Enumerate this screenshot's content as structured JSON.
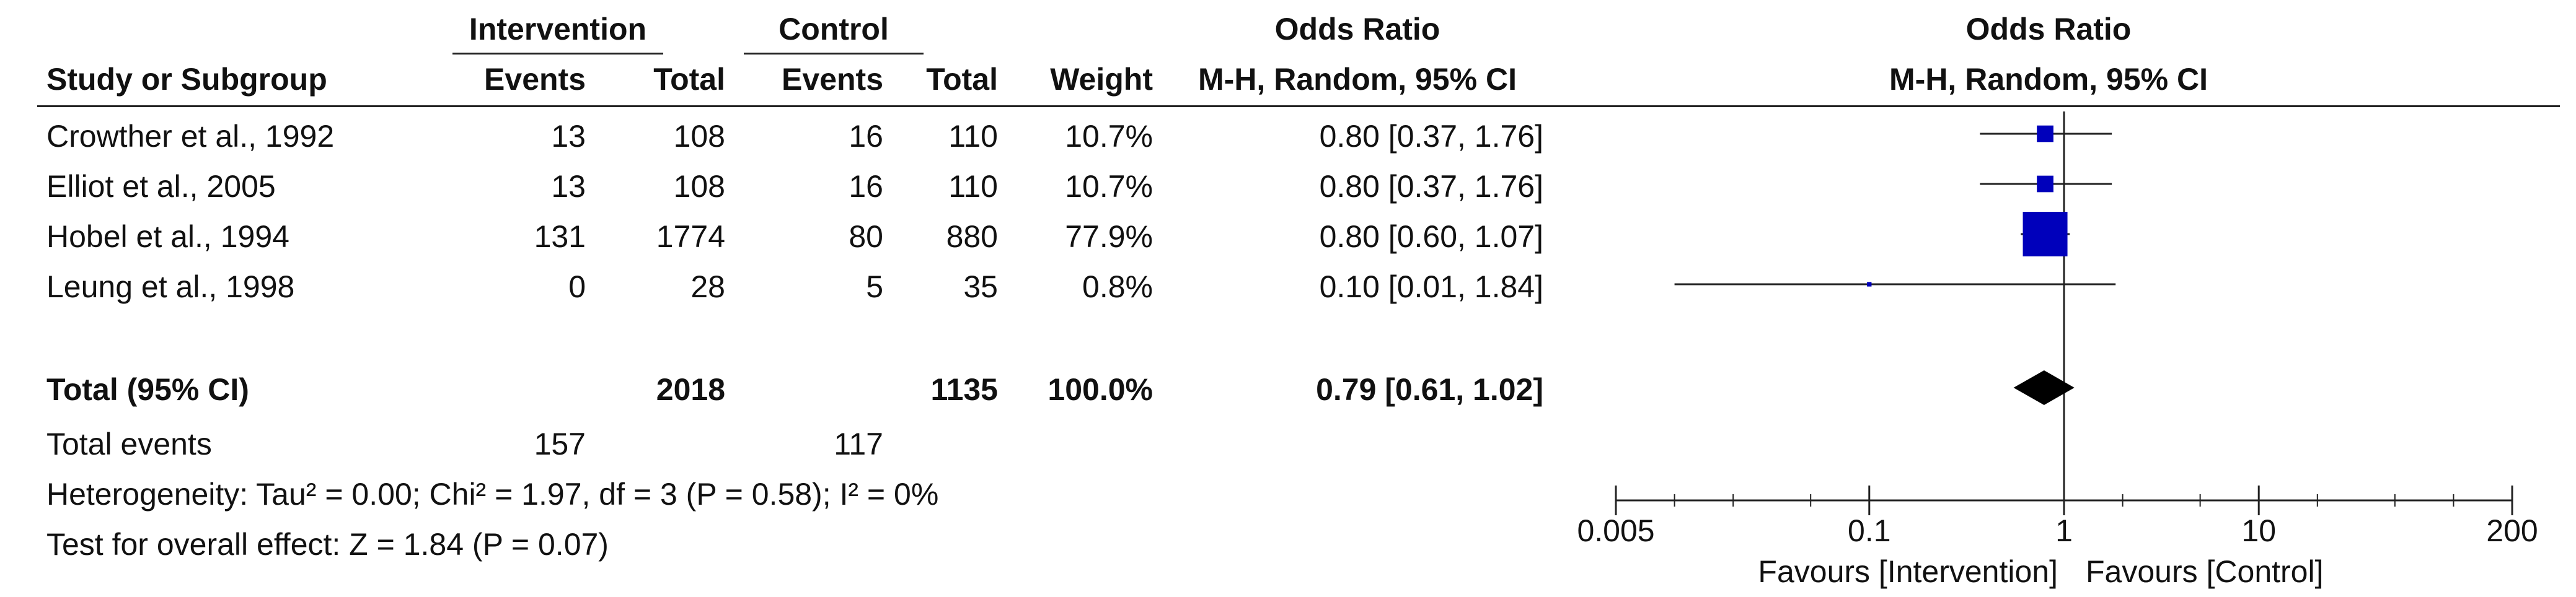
{
  "header": {
    "group_intervention": "Intervention",
    "group_control": "Control",
    "or_table": "Odds Ratio",
    "or_plot": "Odds Ratio",
    "study_or_subgroup": "Study or Subgroup",
    "events": "Events",
    "total": "Total",
    "events2": "Events",
    "total2": "Total",
    "weight": "Weight",
    "method_table": "M-H, Random, 95% CI",
    "method_plot": "M-H, Random, 95% CI"
  },
  "studies": [
    {
      "name": "Crowther et al., 1992",
      "int_events": "13",
      "int_total": "108",
      "ctl_events": "16",
      "ctl_total": "110",
      "weight": "10.7%",
      "ci_text": "0.80 [0.37, 1.76]"
    },
    {
      "name": "Elliot et al., 2005",
      "int_events": "13",
      "int_total": "108",
      "ctl_events": "16",
      "ctl_total": "110",
      "weight": "10.7%",
      "ci_text": "0.80 [0.37, 1.76]"
    },
    {
      "name": "Hobel et al., 1994",
      "int_events": "131",
      "int_total": "1774",
      "ctl_events": "80",
      "ctl_total": "880",
      "weight": "77.9%",
      "ci_text": "0.80 [0.60, 1.07]"
    },
    {
      "name": "Leung et al., 1998",
      "int_events": "0",
      "int_total": "28",
      "ctl_events": "5",
      "ctl_total": "35",
      "weight": "0.8%",
      "ci_text": "0.10 [0.01, 1.84]"
    }
  ],
  "total_row": {
    "label": "Total (95% CI)",
    "int_total": "2018",
    "ctl_total": "1135",
    "weight": "100.0%",
    "ci_text": "0.79 [0.61, 1.02]"
  },
  "total_events": {
    "label": "Total events",
    "int_events": "157",
    "ctl_events": "117"
  },
  "heterogeneity": "Heterogeneity: Tau² = 0.00; Chi² = 1.97, df = 3 (P = 0.58); I² = 0%",
  "overall_effect": "Test for overall effect: Z = 1.84 (P = 0.07)",
  "axis": {
    "favours_left": "Favours [Intervention]",
    "favours_right": "Favours [Control]"
  },
  "colors": {
    "study_marker": "#0000bb",
    "summary_marker": "#000000",
    "line": "#222222"
  },
  "chart_data": {
    "type": "forest",
    "scale": "log",
    "xlim": [
      0.005,
      200
    ],
    "ticks": [
      {
        "value": 0.005,
        "label": "0.005"
      },
      {
        "value": 0.1,
        "label": "0.1"
      },
      {
        "value": 1,
        "label": "1"
      },
      {
        "value": 10,
        "label": "10"
      },
      {
        "value": 200,
        "label": "200"
      }
    ],
    "studies": [
      {
        "or": 0.8,
        "lo": 0.37,
        "hi": 1.76,
        "weight": 10.7
      },
      {
        "or": 0.8,
        "lo": 0.37,
        "hi": 1.76,
        "weight": 10.7
      },
      {
        "or": 0.8,
        "lo": 0.6,
        "hi": 1.07,
        "weight": 77.9
      },
      {
        "or": 0.1,
        "lo": 0.01,
        "hi": 1.84,
        "weight": 0.8
      }
    ],
    "summary": {
      "or": 0.79,
      "lo": 0.61,
      "hi": 1.02
    }
  }
}
